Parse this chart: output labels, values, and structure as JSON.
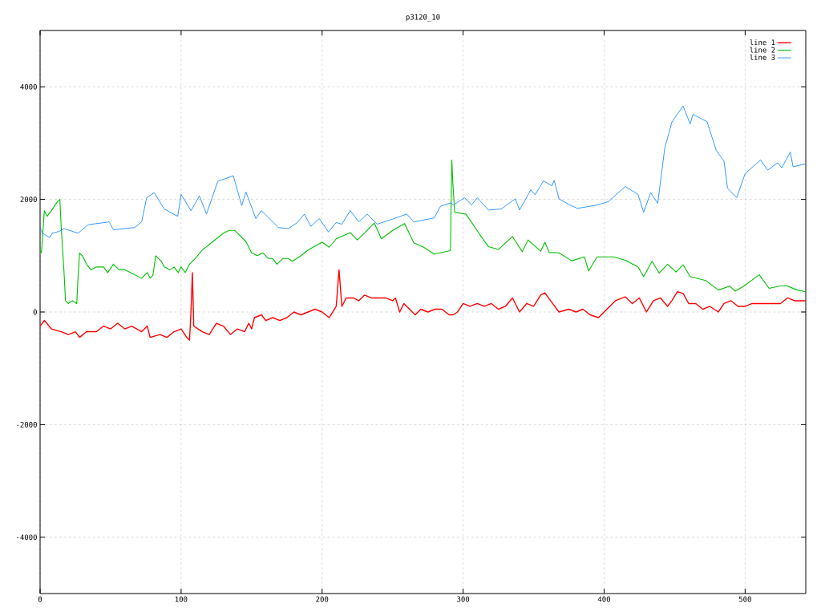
{
  "chart_data": {
    "type": "line",
    "title": "p3120_10",
    "xlim": [
      0,
      543
    ],
    "xticks": [
      0,
      100,
      200,
      300,
      400,
      500
    ],
    "ylim": [
      -5000,
      5000
    ],
    "yticks": [
      -4000,
      -2000,
      0,
      2000,
      4000
    ],
    "grid": true,
    "legend": "top right",
    "series": [
      {
        "name": "line 1",
        "color": "#ff0000",
        "x": [
          0,
          3,
          8,
          15,
          20,
          25,
          28,
          33,
          40,
          45,
          50,
          55,
          60,
          65,
          72,
          76,
          78,
          85,
          90,
          95,
          100,
          104,
          106,
          107,
          108,
          109,
          112,
          115,
          120,
          125,
          130,
          135,
          140,
          145,
          148,
          150,
          152,
          157,
          160,
          165,
          170,
          175,
          180,
          185,
          190,
          195,
          200,
          205,
          210,
          212,
          214,
          217,
          222,
          226,
          230,
          235,
          240,
          245,
          250,
          252,
          255,
          258,
          262,
          266,
          270,
          275,
          280,
          285,
          290,
          293,
          296,
          300,
          305,
          310,
          315,
          320,
          325,
          330,
          335,
          340,
          345,
          350,
          355,
          358,
          362,
          368,
          375,
          380,
          385,
          390,
          396,
          402,
          408,
          415,
          420,
          425,
          430,
          435,
          440,
          445,
          448,
          452,
          456,
          460,
          465,
          470,
          475,
          481,
          485,
          490,
          495,
          500,
          505,
          510,
          515,
          520,
          525,
          530,
          535,
          543
        ],
        "values": [
          -250,
          -150,
          -300,
          -350,
          -400,
          -350,
          -450,
          -350,
          -350,
          -250,
          -300,
          -200,
          -300,
          -250,
          -350,
          -250,
          -450,
          -400,
          -450,
          -350,
          -300,
          -450,
          -500,
          0,
          700,
          -250,
          -300,
          -350,
          -400,
          -200,
          -250,
          -400,
          -300,
          -350,
          -200,
          -300,
          -100,
          -50,
          -150,
          -100,
          -150,
          -100,
          0,
          -50,
          0,
          50,
          0,
          -100,
          100,
          750,
          100,
          250,
          250,
          200,
          300,
          250,
          250,
          250,
          200,
          250,
          0,
          150,
          50,
          -50,
          50,
          0,
          50,
          50,
          -50,
          -50,
          0,
          150,
          100,
          150,
          100,
          150,
          50,
          100,
          250,
          0,
          150,
          100,
          300,
          340,
          200,
          0,
          50,
          0,
          50,
          -50,
          -100,
          50,
          200,
          270,
          150,
          250,
          0,
          200,
          250,
          100,
          200,
          360,
          330,
          150,
          150,
          50,
          100,
          0,
          150,
          200,
          100,
          100,
          150,
          150,
          150,
          150,
          150,
          250,
          200,
          200
        ]
      },
      {
        "name": "line 2",
        "color": "#00c000",
        "x": [
          0,
          1,
          3,
          5,
          8,
          12,
          14,
          15,
          17,
          18,
          20,
          23,
          26,
          27,
          28,
          30,
          33,
          36,
          40,
          45,
          48,
          52,
          56,
          60,
          64,
          68,
          72,
          76,
          78,
          80,
          82,
          86,
          88,
          92,
          95,
          98,
          100,
          103,
          106,
          110,
          115,
          120,
          125,
          130,
          134,
          138,
          142,
          146,
          150,
          154,
          158,
          162,
          165,
          168,
          172,
          176,
          179,
          185,
          190,
          200,
          205,
          210,
          220,
          225,
          230,
          237,
          242,
          250,
          258.5,
          265,
          272,
          279.5,
          291,
          292,
          292.7,
          294,
          302,
          312,
          318,
          325,
          335,
          342,
          346,
          355,
          358,
          361,
          368,
          377,
          386,
          389,
          395,
          407,
          415,
          424,
          428,
          434,
          439,
          445,
          451,
          456,
          461,
          472,
          481,
          489,
          493,
          499,
          510,
          517,
          524,
          529,
          537,
          543
        ],
        "values": [
          1100,
          1050,
          1800,
          1700,
          1800,
          1950,
          2000,
          1500,
          700,
          200,
          150,
          200,
          150,
          650,
          1050,
          1000,
          850,
          750,
          800,
          800,
          700,
          850,
          750,
          750,
          700,
          650,
          600,
          700,
          600,
          650,
          1000,
          900,
          800,
          750,
          800,
          700,
          800,
          700,
          850,
          950,
          1100,
          1200,
          1300,
          1400,
          1450,
          1450,
          1350,
          1250,
          1050,
          1000,
          1050,
          950,
          950,
          850,
          950,
          950,
          900,
          1000,
          1100,
          1240,
          1150,
          1300,
          1410,
          1280,
          1400,
          1580,
          1300,
          1450,
          1570,
          1230,
          1150,
          1030,
          1090,
          2700,
          2300,
          1770,
          1740,
          1370,
          1160,
          1110,
          1340,
          1070,
          1280,
          1080,
          1240,
          1060,
          1050,
          910,
          980,
          730,
          980,
          980,
          920,
          800,
          630,
          900,
          690,
          850,
          710,
          840,
          630,
          560,
          390,
          460,
          370,
          460,
          660,
          420,
          460,
          470,
          390,
          360
        ]
      },
      {
        "name": "line 3",
        "color": "#0080ff",
        "x": [
          0,
          1.9,
          6.8,
          8.7,
          13.4,
          17,
          27,
          34,
          49,
          52,
          67,
          72,
          75.6,
          81,
          88,
          97.6,
          100,
          107,
          113,
          118,
          126,
          137,
          143,
          146,
          153,
          157,
          169,
          176,
          182,
          187.5,
          192,
          198,
          204.5,
          210,
          214,
          220,
          226,
          232,
          239,
          250,
          260,
          265,
          279.5,
          284,
          291.5,
          293,
          301,
          306,
          310,
          318,
          327,
          337,
          340,
          348,
          351,
          357,
          363,
          364.6,
          368,
          375,
          381,
          395,
          403,
          415,
          424,
          428,
          433,
          438,
          443,
          448,
          456,
          461,
          463,
          473,
          479.5,
          485,
          487.5,
          494,
          500,
          511,
          516,
          523,
          526,
          532,
          534,
          543
        ],
        "values": [
          1490,
          1400,
          1320,
          1400,
          1430,
          1480,
          1400,
          1550,
          1600,
          1460,
          1500,
          1600,
          2030,
          2120,
          1830,
          1700,
          2090,
          1800,
          2060,
          1740,
          2320,
          2420,
          1890,
          2130,
          1660,
          1800,
          1500,
          1480,
          1580,
          1740,
          1520,
          1660,
          1420,
          1590,
          1560,
          1800,
          1600,
          1740,
          1560,
          1650,
          1740,
          1600,
          1670,
          1880,
          1940,
          1900,
          2030,
          1900,
          2030,
          1810,
          1830,
          2010,
          1810,
          2170,
          2080,
          2330,
          2240,
          2340,
          2010,
          1910,
          1840,
          1900,
          1960,
          2230,
          2090,
          1770,
          2120,
          1930,
          2910,
          3370,
          3660,
          3340,
          3510,
          3380,
          2870,
          2680,
          2200,
          2030,
          2460,
          2700,
          2520,
          2650,
          2560,
          2840,
          2580,
          2630
        ]
      }
    ]
  }
}
